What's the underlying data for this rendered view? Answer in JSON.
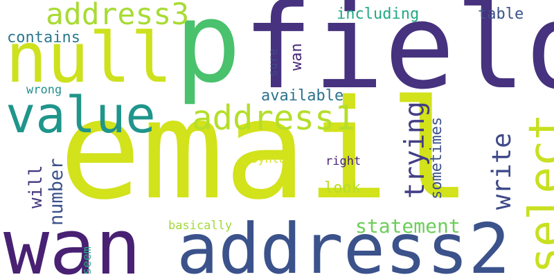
{
  "words": [
    {
      "id": "email",
      "text": "email",
      "color": "#d2e21b"
    },
    {
      "id": "field",
      "text": "field",
      "color": "#46327e"
    },
    {
      "id": "p",
      "text": "p",
      "color": "#4ac16d"
    },
    {
      "id": "address2",
      "text": "address2",
      "color": "#3b528b"
    },
    {
      "id": "wan-big",
      "text": "wan",
      "color": "#482173"
    },
    {
      "id": "null",
      "text": "null",
      "color": "#cde11d"
    },
    {
      "id": "value",
      "text": "value",
      "color": "#1f958b"
    },
    {
      "id": "address1",
      "text": "address1",
      "color": "#b5de2b"
    },
    {
      "id": "select",
      "text": "select",
      "color": "#c8e020"
    },
    {
      "id": "address3",
      "text": "address3",
      "color": "#a8db34"
    },
    {
      "id": "trying",
      "text": "trying",
      "color": "#433e85"
    },
    {
      "id": "write",
      "text": "write",
      "color": "#3e4989"
    },
    {
      "id": "statement",
      "text": "statement",
      "color": "#6ccd5a"
    },
    {
      "id": "number",
      "text": "number",
      "color": "#3b528b"
    },
    {
      "id": "will",
      "text": "will",
      "color": "#453781"
    },
    {
      "id": "contains",
      "text": "contains",
      "color": "#2a788e"
    },
    {
      "id": "including",
      "text": "including",
      "color": "#22a884"
    },
    {
      "id": "available",
      "text": "available",
      "color": "#2c728e"
    },
    {
      "id": "table",
      "text": "table",
      "color": "#3b528b"
    },
    {
      "id": "sometimes",
      "text": "sometimes",
      "color": "#3b528b"
    },
    {
      "id": "look",
      "text": "look",
      "color": "#b8de29"
    },
    {
      "id": "wan-small",
      "text": "wan",
      "color": "#482878"
    },
    {
      "id": "wrong",
      "text": "wrong",
      "color": "#21918c"
    },
    {
      "id": "syntax",
      "text": "Syntax",
      "color": "#d8e219"
    },
    {
      "id": "right",
      "text": "right",
      "color": "#482475"
    },
    {
      "id": "basically",
      "text": "basically",
      "color": "#a0da39"
    },
    {
      "id": "seem",
      "text": "seem",
      "color": "#27ad81"
    },
    {
      "id": "sure",
      "text": "sure",
      "color": "#3e4a89"
    }
  ]
}
